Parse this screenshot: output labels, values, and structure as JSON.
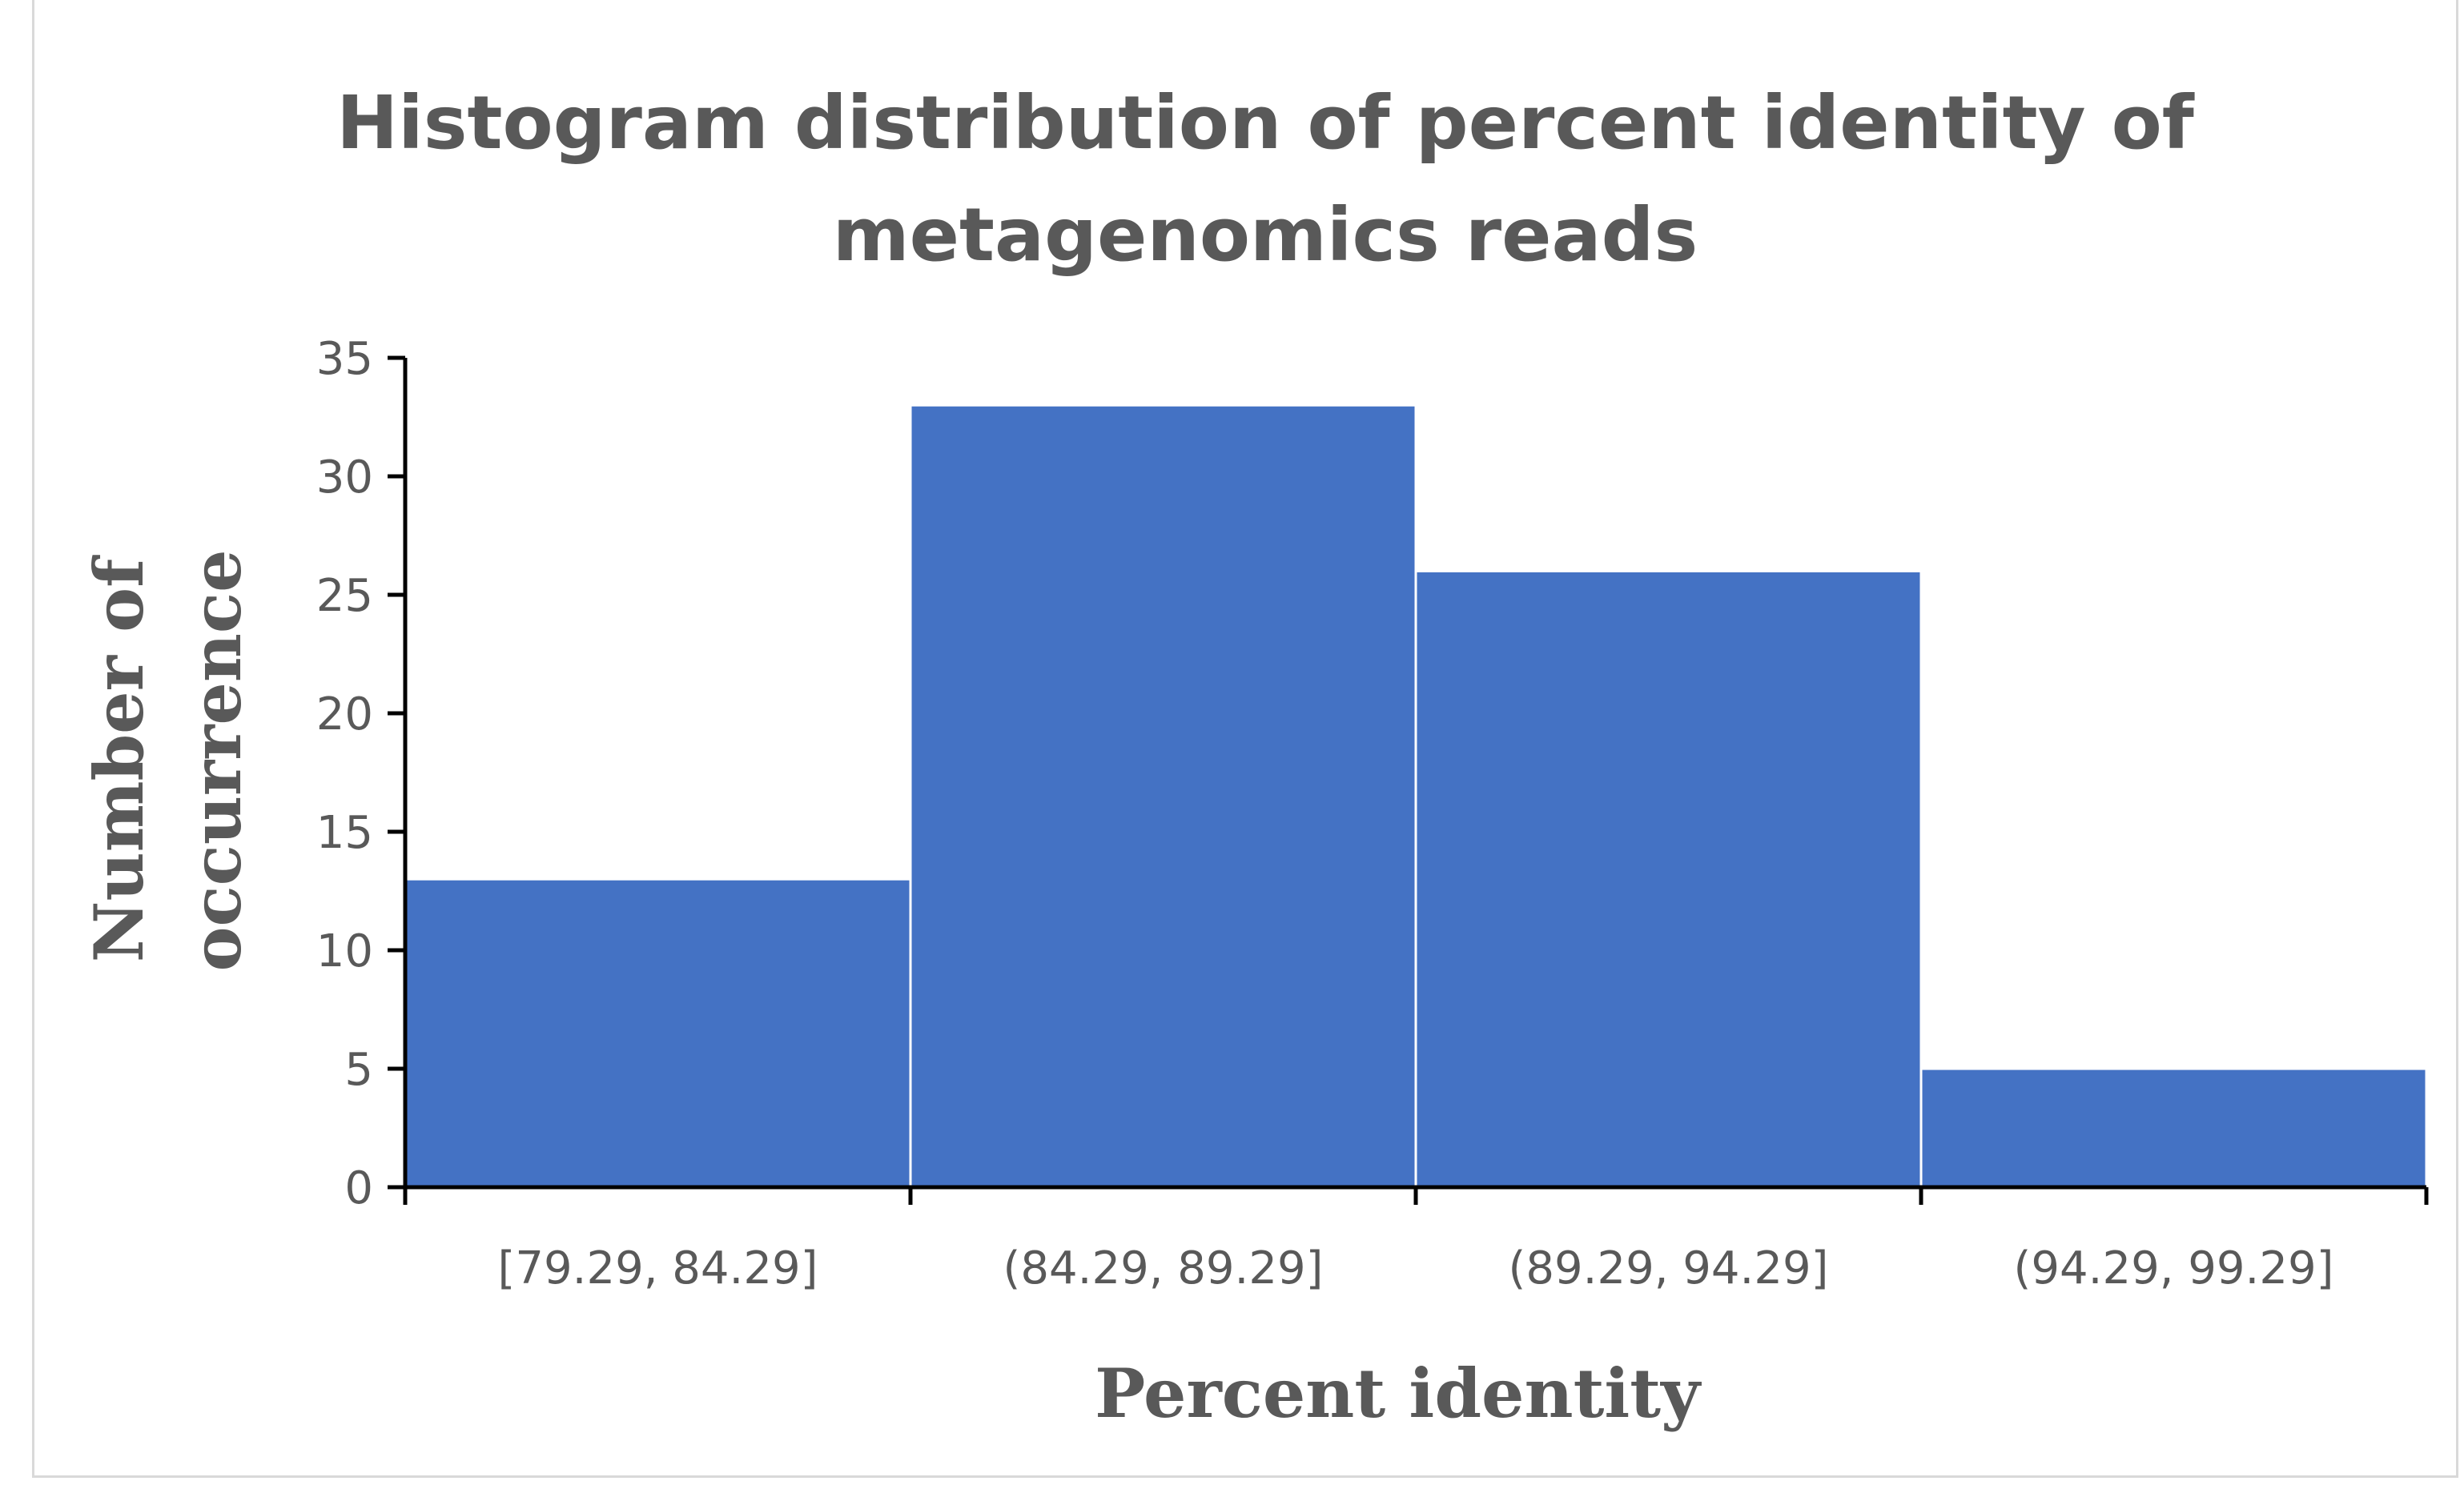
{
  "chart_data": {
    "type": "bar",
    "title": [
      "Histogram distribution of percent identity of",
      "metagenomics reads"
    ],
    "xlabel": "Percent identity",
    "ylabel": [
      "Number of",
      "occurrence"
    ],
    "categories": [
      "[79.29, 84.29]",
      "(84.29, 89.29]",
      "(89.29, 94.29]",
      "(94.29, 99.29]"
    ],
    "values": [
      13,
      33,
      26,
      5
    ],
    "ylim": [
      0,
      35
    ],
    "yticks": [
      0,
      5,
      10,
      15,
      20,
      25,
      30,
      35
    ],
    "grid": false,
    "legend": "none",
    "colors": {
      "bar": "#4472c4",
      "bar_edge": "#ffffff",
      "text": "#595959",
      "axis": "#000000"
    }
  }
}
